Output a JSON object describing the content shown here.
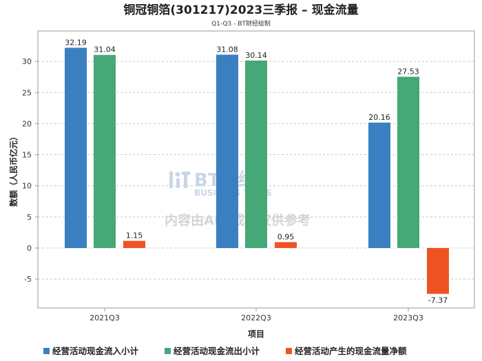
{
  "watermark": {
    "brand": "BT财经",
    "brand_en": "BUSINESS TIMES",
    "disclaimer": "内容由AI生成，仅供参考"
  },
  "chart_data": {
    "type": "bar",
    "title": "铜冠铜箔(301217)2023三季报 – 现金流量",
    "subtitle": "Q1-Q3 - BT财经绘制",
    "xlabel": "项目",
    "ylabel": "数额（人民币亿元）",
    "categories": [
      "2021Q3",
      "2022Q3",
      "2023Q3"
    ],
    "ylim": [
      -8.5,
      33
    ],
    "yticks": [
      -5,
      0,
      5,
      10,
      15,
      20,
      25,
      30
    ],
    "grid": true,
    "legend_position": "bottom",
    "series": [
      {
        "name": "经营活动现金流入小计",
        "color": "#3a80c0",
        "values": [
          32.19,
          31.08,
          20.16
        ],
        "labels": [
          "32.19",
          "31.08",
          "20.16"
        ]
      },
      {
        "name": "经营活动现金流出小计",
        "color": "#45a876",
        "values": [
          31.04,
          30.14,
          27.53
        ],
        "labels": [
          "31.04",
          "30.14",
          "27.53"
        ]
      },
      {
        "name": "经营活动产生的现金流量净额",
        "color": "#f05323",
        "values": [
          1.15,
          0.95,
          -7.37
        ],
        "labels": [
          "1.15",
          "0.95",
          "-7.37"
        ]
      }
    ]
  }
}
